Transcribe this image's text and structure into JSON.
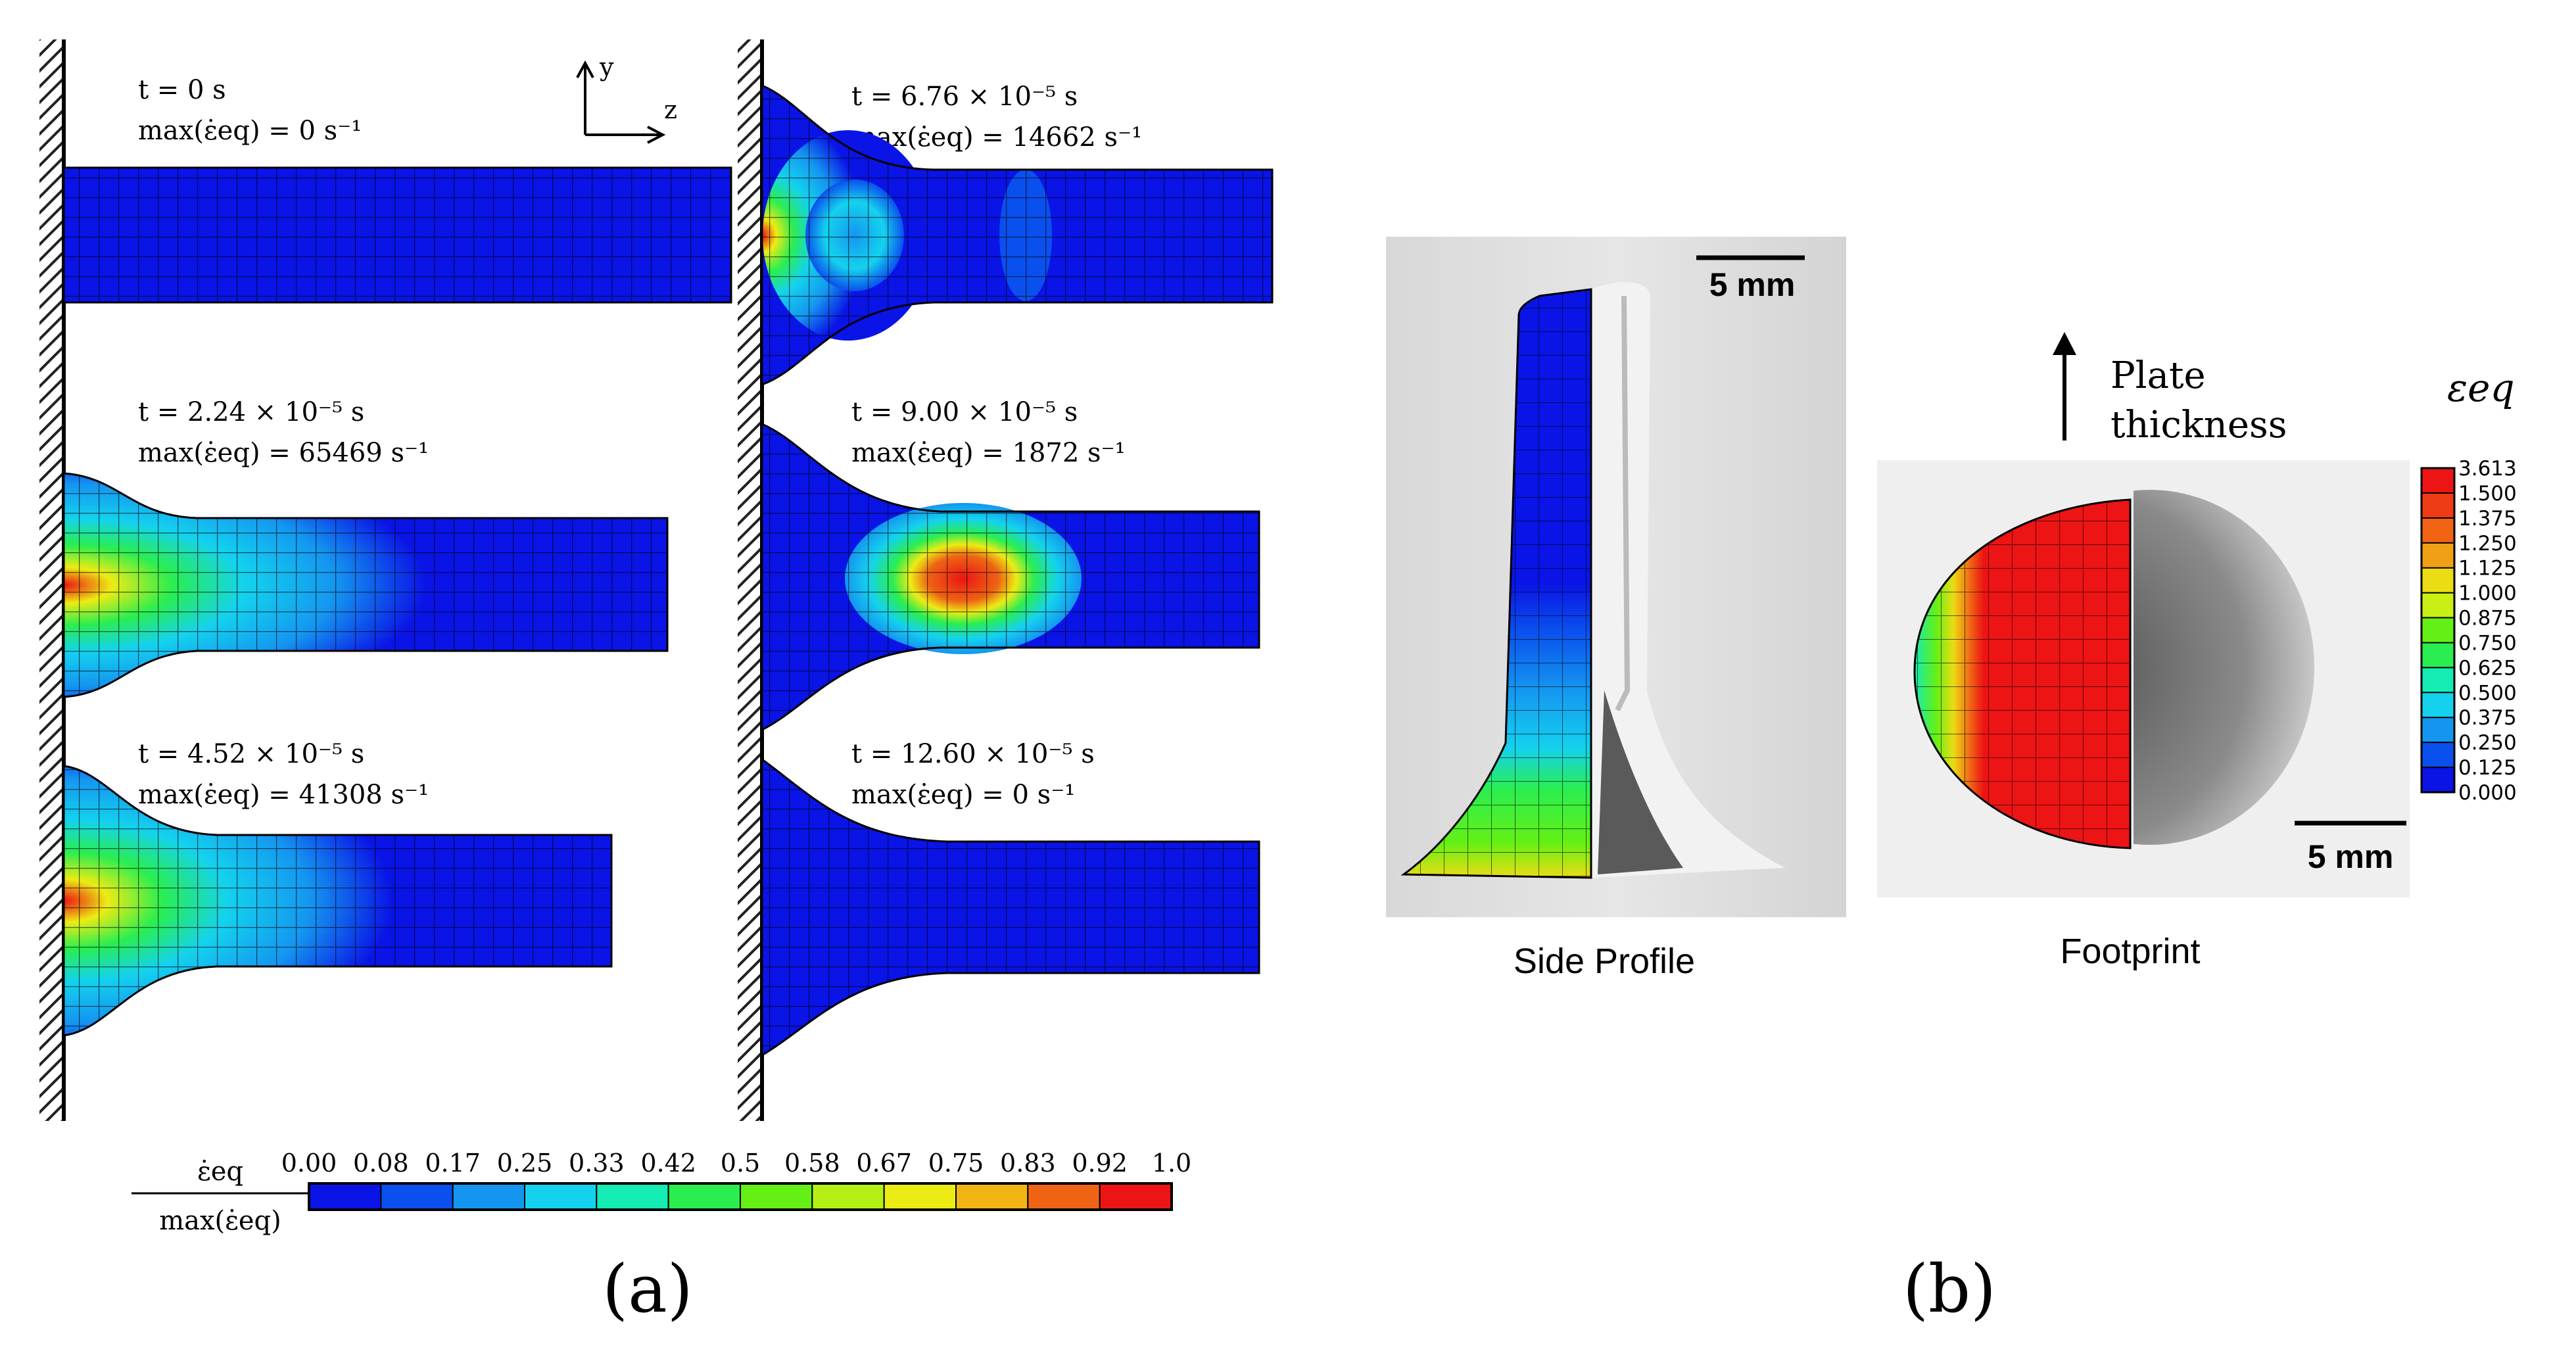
{
  "panel_a": {
    "label": "(a)",
    "axes": {
      "y": "y",
      "z": "z"
    },
    "snapshots": [
      {
        "time": "t = 0 s",
        "rate": "max(ε̇eq) = 0 s⁻¹"
      },
      {
        "time": "t = 2.24 × 10⁻⁵ s",
        "rate": "max(ε̇eq) = 65469 s⁻¹"
      },
      {
        "time": "t = 4.52 × 10⁻⁵ s",
        "rate": "max(ε̇eq) = 41308 s⁻¹"
      },
      {
        "time": "t = 6.76 × 10⁻⁵ s",
        "rate": "max(ε̇eq) = 14662 s⁻¹"
      },
      {
        "time": "t = 9.00 × 10⁻⁵ s",
        "rate": "max(ε̇eq) = 1872 s⁻¹"
      },
      {
        "time": "t = 12.60 × 10⁻⁵ s",
        "rate": "max(ε̇eq) = 0 s⁻¹"
      }
    ],
    "colorbar": {
      "label_num": "ε̇eq",
      "label_den": "max(ε̇eq)",
      "ticks": [
        "0.00",
        "0.08",
        "0.17",
        "0.25",
        "0.33",
        "0.42",
        "0.5",
        "0.58",
        "0.67",
        "0.75",
        "0.83",
        "0.92",
        "1.0"
      ],
      "colors": [
        "#0a14e6",
        "#0a50ee",
        "#1496f0",
        "#14d2ee",
        "#14ecb4",
        "#2aee50",
        "#64f014",
        "#b4f014",
        "#ecec14",
        "#f0b414",
        "#ee6414",
        "#ec1414"
      ]
    }
  },
  "panel_b": {
    "label": "(b)",
    "side_caption": "Side Profile",
    "foot_caption": "Footprint",
    "scale_side": "5 mm",
    "scale_foot": "5 mm",
    "plate_text_1": "Plate",
    "plate_text_2": "thickness",
    "legend_title": "εeq",
    "legend_ticks": [
      "3.613",
      "1.500",
      "1.375",
      "1.250",
      "1.125",
      "1.000",
      "0.875",
      "0.750",
      "0.625",
      "0.500",
      "0.375",
      "0.250",
      "0.125",
      "0.000"
    ],
    "legend_colors": [
      "#ec1414",
      "#ee3c14",
      "#f06414",
      "#f0a014",
      "#ecdc14",
      "#c8f014",
      "#64f014",
      "#2aee50",
      "#14ecb4",
      "#14d2ee",
      "#1496f0",
      "#0a50ee",
      "#0a14e6"
    ]
  }
}
